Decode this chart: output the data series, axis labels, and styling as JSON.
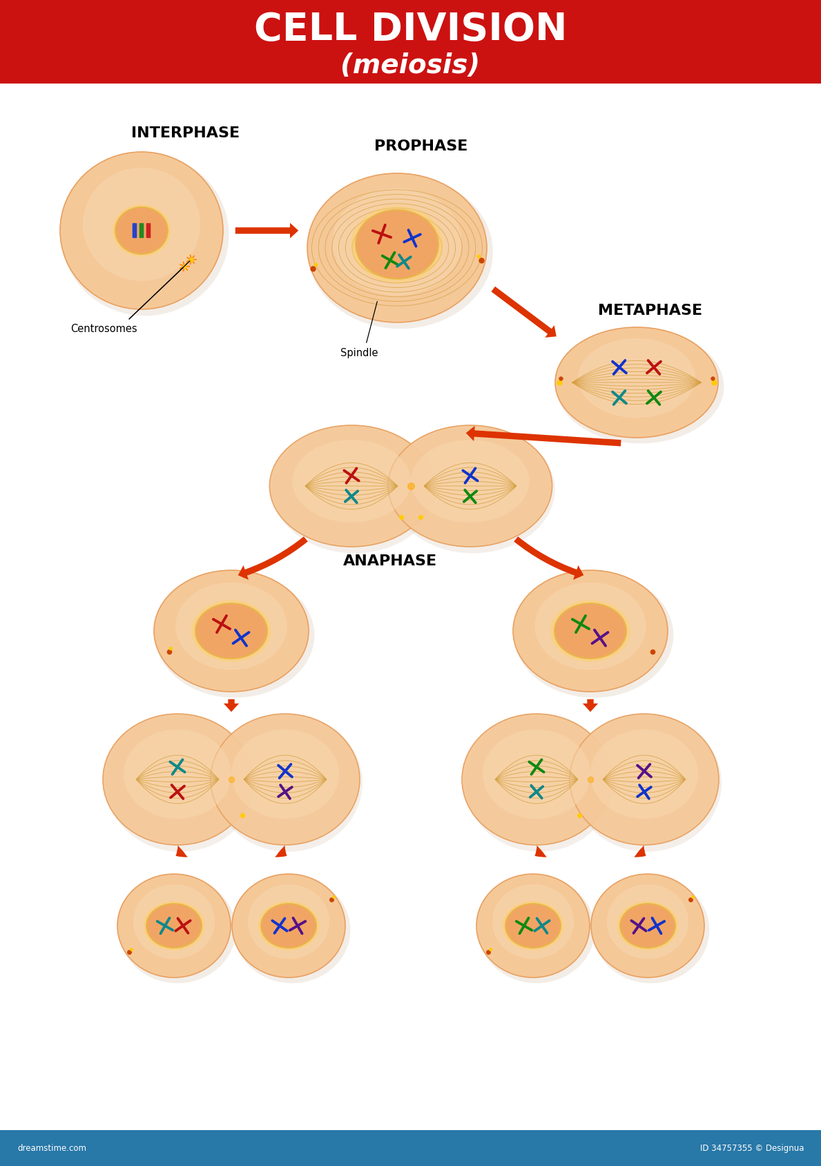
{
  "title_main": "CELL DIVISION",
  "title_sub": "(meiosis)",
  "title_bg": "#cc1111",
  "title_text_color": "#ffffff",
  "bg_color": "#ffffff",
  "footer_bg": "#2878a8",
  "footer_text": "dreamstime.com",
  "footer_id": "ID 34757355 © Designua",
  "cell_fill_outer": "#f5c898",
  "cell_fill_inner": "#f0b07a",
  "cell_edge": "#e8a060",
  "nucleus_fill": "#f0a070",
  "nucleus_edge": "#e8c050",
  "spindle_color": "#d4a040",
  "arrow_color": "#dd3300",
  "label_color": "#000000",
  "chr_red": "#bb1111",
  "chr_blue": "#1133cc",
  "chr_green": "#118811",
  "chr_purple": "#551188",
  "chr_teal": "#118888",
  "centrosome_color": "#ffaa00",
  "labels": {
    "interphase": "INTERPHASE",
    "prophase": "PROPHASE",
    "metaphase": "METAPHASE",
    "anaphase": "ANAPHASE",
    "centrosomes": "Centrosomes",
    "spindle": "Spindle"
  }
}
